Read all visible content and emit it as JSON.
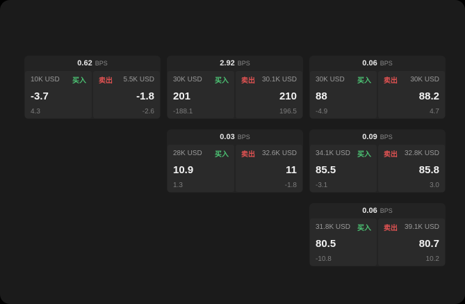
{
  "labels": {
    "bps": "BPS",
    "buy": "买入",
    "sell": "卖出"
  },
  "theme": {
    "background": "#1b1b1b",
    "card": "#232323",
    "panel": "#2a2a2a",
    "buy_color": "#4cc273",
    "sell_color": "#e05252"
  },
  "cards": [
    {
      "bps": "0.62",
      "buy": {
        "amount": "10K USD",
        "price": "-3.7",
        "delta": "4.3"
      },
      "sell": {
        "amount": "5.5K USD",
        "price": "-1.8",
        "delta": "-2.6"
      }
    },
    {
      "bps": "2.92",
      "buy": {
        "amount": "30K USD",
        "price": "201",
        "delta": "-188.1"
      },
      "sell": {
        "amount": "30.1K USD",
        "price": "210",
        "delta": "196.5"
      }
    },
    {
      "bps": "0.06",
      "buy": {
        "amount": "30K USD",
        "price": "88",
        "delta": "-4.9"
      },
      "sell": {
        "amount": "30K USD",
        "price": "88.2",
        "delta": "4.7"
      }
    },
    {
      "bps": "0.03",
      "buy": {
        "amount": "28K USD",
        "price": "10.9",
        "delta": "1.3"
      },
      "sell": {
        "amount": "32.6K USD",
        "price": "11",
        "delta": "-1.8"
      }
    },
    {
      "bps": "0.09",
      "buy": {
        "amount": "34.1K USD",
        "price": "85.5",
        "delta": "-3.1"
      },
      "sell": {
        "amount": "32.8K USD",
        "price": "85.8",
        "delta": "3.0"
      }
    },
    {
      "bps": "0.06",
      "buy": {
        "amount": "31.8K USD",
        "price": "80.5",
        "delta": "-10.8"
      },
      "sell": {
        "amount": "39.1K USD",
        "price": "80.7",
        "delta": "10.2"
      }
    }
  ]
}
